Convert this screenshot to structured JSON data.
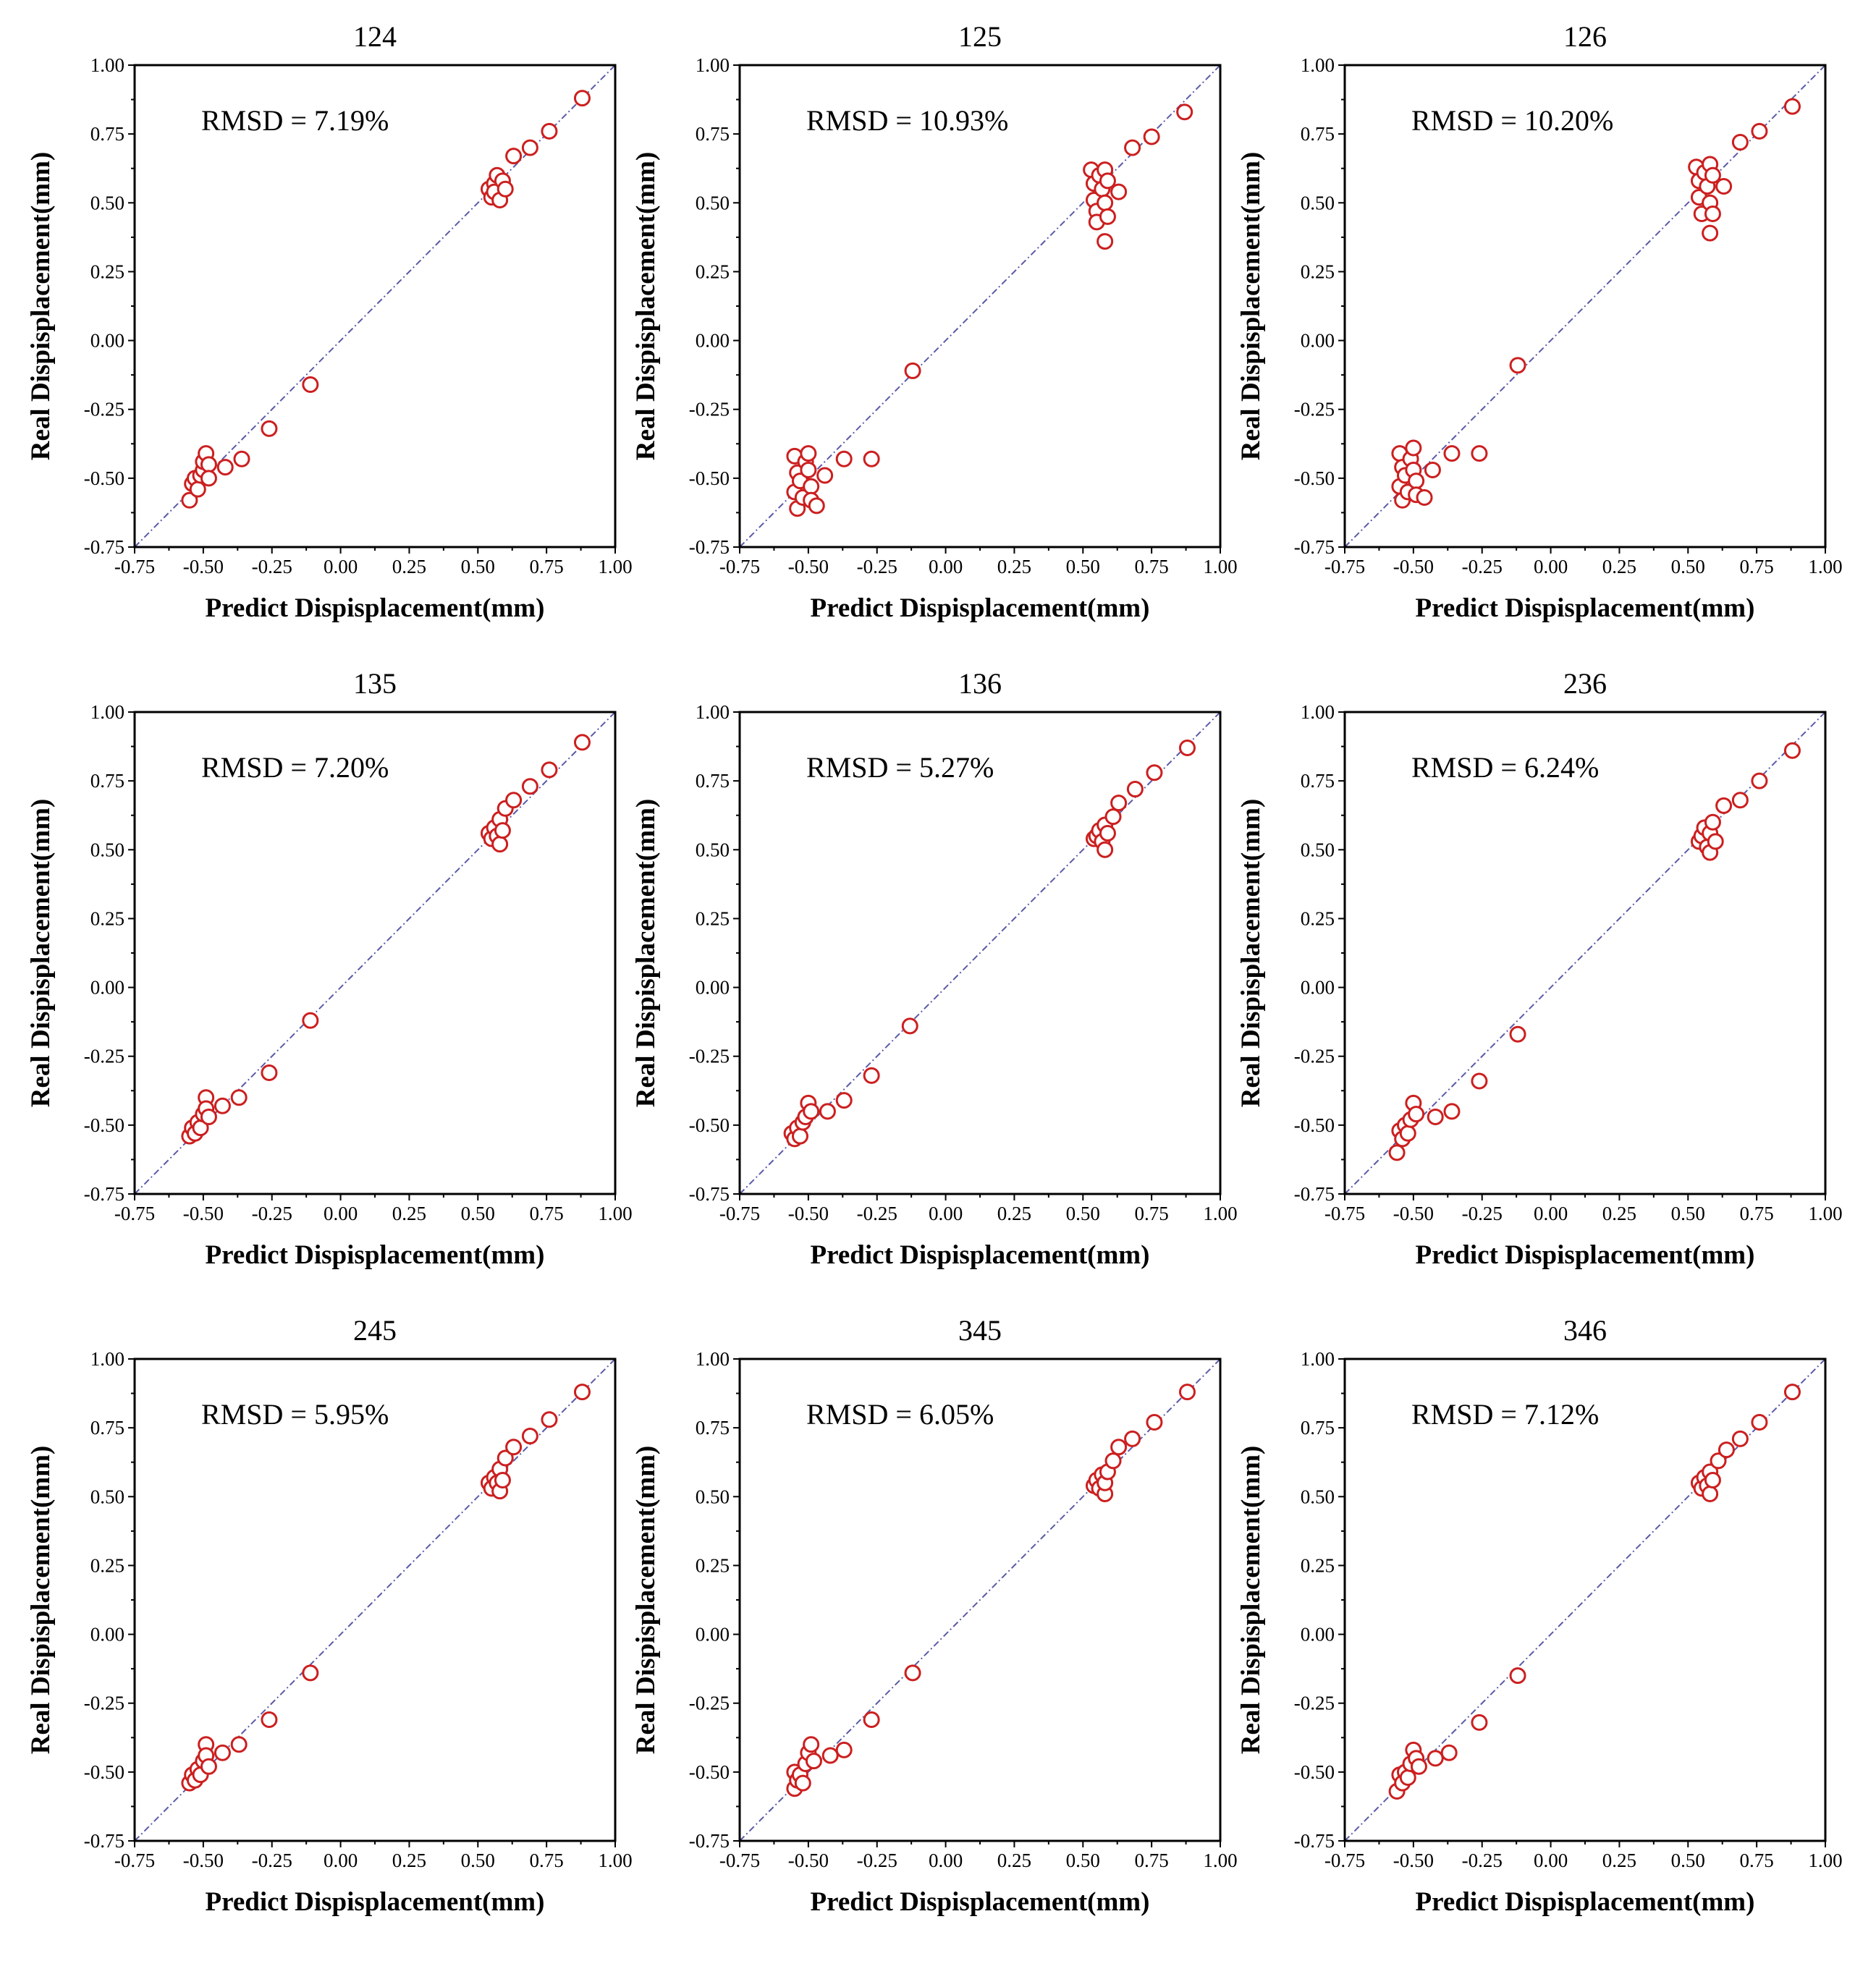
{
  "chart_data": [
    {
      "type": "scatter",
      "title": "124",
      "annotation": "RMSD = 7.19%",
      "xlabel": "Predict Dispisplacement(mm)",
      "ylabel": "Real Dispisplacement(mm)",
      "xlim": [
        -0.75,
        1.0
      ],
      "ylim": [
        -0.75,
        1.0
      ],
      "xticks": [
        "-0.75",
        "-0.50",
        "-0.25",
        "0.00",
        "0.25",
        "0.50",
        "0.75",
        "1.00"
      ],
      "yticks": [
        "-0.75",
        "-0.50",
        "-0.25",
        "0.00",
        "0.25",
        "0.50",
        "0.75",
        "1.00"
      ],
      "reference_line": "y = x",
      "marker_color": "#cc1f1f",
      "line_color": "#5a5aa8",
      "points": [
        [
          -0.55,
          -0.58
        ],
        [
          -0.54,
          -0.52
        ],
        [
          -0.53,
          -0.5
        ],
        [
          -0.52,
          -0.54
        ],
        [
          -0.51,
          -0.49
        ],
        [
          -0.5,
          -0.47
        ],
        [
          -0.5,
          -0.44
        ],
        [
          -0.49,
          -0.41
        ],
        [
          -0.48,
          -0.45
        ],
        [
          -0.48,
          -0.5
        ],
        [
          -0.42,
          -0.46
        ],
        [
          -0.36,
          -0.43
        ],
        [
          -0.26,
          -0.32
        ],
        [
          -0.11,
          -0.16
        ],
        [
          0.54,
          0.55
        ],
        [
          0.55,
          0.52
        ],
        [
          0.56,
          0.57
        ],
        [
          0.56,
          0.54
        ],
        [
          0.57,
          0.6
        ],
        [
          0.58,
          0.51
        ],
        [
          0.59,
          0.58
        ],
        [
          0.6,
          0.55
        ],
        [
          0.63,
          0.67
        ],
        [
          0.69,
          0.7
        ],
        [
          0.76,
          0.76
        ],
        [
          0.88,
          0.88
        ]
      ]
    },
    {
      "type": "scatter",
      "title": "125",
      "annotation": "RMSD = 10.93%",
      "xlabel": "Predict Dispisplacement(mm)",
      "ylabel": "Real Dispisplacement(mm)",
      "xlim": [
        -0.75,
        1.0
      ],
      "ylim": [
        -0.75,
        1.0
      ],
      "xticks": [
        "-0.75",
        "-0.50",
        "-0.25",
        "0.00",
        "0.25",
        "0.50",
        "0.75",
        "1.00"
      ],
      "yticks": [
        "-0.75",
        "-0.50",
        "-0.25",
        "0.00",
        "0.25",
        "0.50",
        "0.75",
        "1.00"
      ],
      "reference_line": "y = x",
      "marker_color": "#cc1f1f",
      "line_color": "#5a5aa8",
      "points": [
        [
          -0.55,
          -0.42
        ],
        [
          -0.55,
          -0.55
        ],
        [
          -0.54,
          -0.48
        ],
        [
          -0.54,
          -0.61
        ],
        [
          -0.53,
          -0.51
        ],
        [
          -0.52,
          -0.57
        ],
        [
          -0.51,
          -0.44
        ],
        [
          -0.5,
          -0.41
        ],
        [
          -0.5,
          -0.47
        ],
        [
          -0.49,
          -0.53
        ],
        [
          -0.49,
          -0.58
        ],
        [
          -0.47,
          -0.6
        ],
        [
          -0.44,
          -0.49
        ],
        [
          -0.37,
          -0.43
        ],
        [
          -0.27,
          -0.43
        ],
        [
          -0.12,
          -0.11
        ],
        [
          0.53,
          0.62
        ],
        [
          0.54,
          0.57
        ],
        [
          0.54,
          0.51
        ],
        [
          0.55,
          0.47
        ],
        [
          0.55,
          0.43
        ],
        [
          0.56,
          0.6
        ],
        [
          0.57,
          0.55
        ],
        [
          0.58,
          0.5
        ],
        [
          0.58,
          0.62
        ],
        [
          0.59,
          0.58
        ],
        [
          0.59,
          0.45
        ],
        [
          0.58,
          0.36
        ],
        [
          0.63,
          0.54
        ],
        [
          0.68,
          0.7
        ],
        [
          0.75,
          0.74
        ],
        [
          0.87,
          0.83
        ]
      ]
    },
    {
      "type": "scatter",
      "title": "126",
      "annotation": "RMSD = 10.20%",
      "xlabel": "Predict Dispisplacement(mm)",
      "ylabel": "Real Dispisplacement(mm)",
      "xlim": [
        -0.75,
        1.0
      ],
      "ylim": [
        -0.75,
        1.0
      ],
      "xticks": [
        "-0.75",
        "-0.50",
        "-0.25",
        "0.00",
        "0.25",
        "0.50",
        "0.75",
        "1.00"
      ],
      "yticks": [
        "-0.75",
        "-0.50",
        "-0.25",
        "0.00",
        "0.25",
        "0.50",
        "0.75",
        "1.00"
      ],
      "reference_line": "y = x",
      "marker_color": "#cc1f1f",
      "line_color": "#5a5aa8",
      "points": [
        [
          -0.55,
          -0.41
        ],
        [
          -0.55,
          -0.53
        ],
        [
          -0.54,
          -0.46
        ],
        [
          -0.54,
          -0.58
        ],
        [
          -0.53,
          -0.49
        ],
        [
          -0.52,
          -0.55
        ],
        [
          -0.51,
          -0.43
        ],
        [
          -0.5,
          -0.39
        ],
        [
          -0.5,
          -0.47
        ],
        [
          -0.49,
          -0.51
        ],
        [
          -0.49,
          -0.56
        ],
        [
          -0.46,
          -0.57
        ],
        [
          -0.43,
          -0.47
        ],
        [
          -0.36,
          -0.41
        ],
        [
          -0.26,
          -0.41
        ],
        [
          -0.12,
          -0.09
        ],
        [
          0.53,
          0.63
        ],
        [
          0.54,
          0.58
        ],
        [
          0.54,
          0.52
        ],
        [
          0.55,
          0.46
        ],
        [
          0.56,
          0.61
        ],
        [
          0.57,
          0.56
        ],
        [
          0.58,
          0.5
        ],
        [
          0.58,
          0.64
        ],
        [
          0.59,
          0.6
        ],
        [
          0.59,
          0.46
        ],
        [
          0.58,
          0.39
        ],
        [
          0.63,
          0.56
        ],
        [
          0.69,
          0.72
        ],
        [
          0.76,
          0.76
        ],
        [
          0.88,
          0.85
        ]
      ]
    },
    {
      "type": "scatter",
      "title": "135",
      "annotation": "RMSD = 7.20%",
      "xlabel": "Predict Dispisplacement(mm)",
      "ylabel": "Real Dispisplacement(mm)",
      "xlim": [
        -0.75,
        1.0
      ],
      "ylim": [
        -0.75,
        1.0
      ],
      "xticks": [
        "-0.75",
        "-0.50",
        "-0.25",
        "0.00",
        "0.25",
        "0.50",
        "0.75",
        "1.00"
      ],
      "yticks": [
        "-0.75",
        "-0.50",
        "-0.25",
        "0.00",
        "0.25",
        "0.50",
        "0.75",
        "1.00"
      ],
      "reference_line": "y = x",
      "marker_color": "#cc1f1f",
      "line_color": "#5a5aa8",
      "points": [
        [
          -0.55,
          -0.54
        ],
        [
          -0.54,
          -0.51
        ],
        [
          -0.53,
          -0.53
        ],
        [
          -0.52,
          -0.49
        ],
        [
          -0.51,
          -0.51
        ],
        [
          -0.5,
          -0.46
        ],
        [
          -0.49,
          -0.4
        ],
        [
          -0.49,
          -0.44
        ],
        [
          -0.48,
          -0.47
        ],
        [
          -0.43,
          -0.43
        ],
        [
          -0.37,
          -0.4
        ],
        [
          -0.26,
          -0.31
        ],
        [
          -0.11,
          -0.12
        ],
        [
          0.54,
          0.56
        ],
        [
          0.55,
          0.54
        ],
        [
          0.56,
          0.58
        ],
        [
          0.57,
          0.55
        ],
        [
          0.58,
          0.61
        ],
        [
          0.58,
          0.52
        ],
        [
          0.59,
          0.57
        ],
        [
          0.6,
          0.65
        ],
        [
          0.63,
          0.68
        ],
        [
          0.69,
          0.73
        ],
        [
          0.76,
          0.79
        ],
        [
          0.88,
          0.89
        ]
      ]
    },
    {
      "type": "scatter",
      "title": "136",
      "annotation": "RMSD = 5.27%",
      "xlabel": "Predict Dispisplacement(mm)",
      "ylabel": "Real Dispisplacement(mm)",
      "xlim": [
        -0.75,
        1.0
      ],
      "ylim": [
        -0.75,
        1.0
      ],
      "xticks": [
        "-0.75",
        "-0.50",
        "-0.25",
        "0.00",
        "0.25",
        "0.50",
        "0.75",
        "1.00"
      ],
      "yticks": [
        "-0.75",
        "-0.50",
        "-0.25",
        "0.00",
        "0.25",
        "0.50",
        "0.75",
        "1.00"
      ],
      "reference_line": "y = x",
      "marker_color": "#cc1f1f",
      "line_color": "#5a5aa8",
      "points": [
        [
          -0.56,
          -0.53
        ],
        [
          -0.55,
          -0.55
        ],
        [
          -0.54,
          -0.51
        ],
        [
          -0.53,
          -0.54
        ],
        [
          -0.52,
          -0.49
        ],
        [
          -0.51,
          -0.47
        ],
        [
          -0.5,
          -0.42
        ],
        [
          -0.49,
          -0.45
        ],
        [
          -0.43,
          -0.45
        ],
        [
          -0.37,
          -0.41
        ],
        [
          -0.27,
          -0.32
        ],
        [
          -0.13,
          -0.14
        ],
        [
          0.54,
          0.54
        ],
        [
          0.55,
          0.55
        ],
        [
          0.56,
          0.57
        ],
        [
          0.57,
          0.53
        ],
        [
          0.58,
          0.59
        ],
        [
          0.58,
          0.5
        ],
        [
          0.59,
          0.56
        ],
        [
          0.61,
          0.62
        ],
        [
          0.63,
          0.67
        ],
        [
          0.69,
          0.72
        ],
        [
          0.76,
          0.78
        ],
        [
          0.88,
          0.87
        ]
      ]
    },
    {
      "type": "scatter",
      "title": "236",
      "annotation": "RMSD = 6.24%",
      "xlabel": "Predict Dispisplacement(mm)",
      "ylabel": "Real Dispisplacement(mm)",
      "xlim": [
        -0.75,
        1.0
      ],
      "ylim": [
        -0.75,
        1.0
      ],
      "xticks": [
        "-0.75",
        "-0.50",
        "-0.25",
        "0.00",
        "0.25",
        "0.50",
        "0.75",
        "1.00"
      ],
      "yticks": [
        "-0.75",
        "-0.50",
        "-0.25",
        "0.00",
        "0.25",
        "0.50",
        "0.75",
        "1.00"
      ],
      "reference_line": "y = x",
      "marker_color": "#cc1f1f",
      "line_color": "#5a5aa8",
      "points": [
        [
          -0.56,
          -0.6
        ],
        [
          -0.55,
          -0.52
        ],
        [
          -0.54,
          -0.55
        ],
        [
          -0.53,
          -0.5
        ],
        [
          -0.52,
          -0.53
        ],
        [
          -0.51,
          -0.48
        ],
        [
          -0.5,
          -0.42
        ],
        [
          -0.49,
          -0.46
        ],
        [
          -0.42,
          -0.47
        ],
        [
          -0.36,
          -0.45
        ],
        [
          -0.26,
          -0.34
        ],
        [
          -0.12,
          -0.17
        ],
        [
          0.54,
          0.53
        ],
        [
          0.55,
          0.55
        ],
        [
          0.56,
          0.58
        ],
        [
          0.57,
          0.51
        ],
        [
          0.58,
          0.56
        ],
        [
          0.58,
          0.49
        ],
        [
          0.59,
          0.6
        ],
        [
          0.6,
          0.53
        ],
        [
          0.63,
          0.66
        ],
        [
          0.69,
          0.68
        ],
        [
          0.76,
          0.75
        ],
        [
          0.88,
          0.86
        ]
      ]
    },
    {
      "type": "scatter",
      "title": "245",
      "annotation": "RMSD = 5.95%",
      "xlabel": "Predict Dispisplacement(mm)",
      "ylabel": "Real Dispisplacement(mm)",
      "xlim": [
        -0.75,
        1.0
      ],
      "ylim": [
        -0.75,
        1.0
      ],
      "xticks": [
        "-0.75",
        "-0.50",
        "-0.25",
        "0.00",
        "0.25",
        "0.50",
        "0.75",
        "1.00"
      ],
      "yticks": [
        "-0.75",
        "-0.50",
        "-0.25",
        "0.00",
        "0.25",
        "0.50",
        "0.75",
        "1.00"
      ],
      "reference_line": "y = x",
      "marker_color": "#cc1f1f",
      "line_color": "#5a5aa8",
      "points": [
        [
          -0.55,
          -0.54
        ],
        [
          -0.54,
          -0.51
        ],
        [
          -0.53,
          -0.53
        ],
        [
          -0.52,
          -0.49
        ],
        [
          -0.51,
          -0.51
        ],
        [
          -0.5,
          -0.46
        ],
        [
          -0.49,
          -0.4
        ],
        [
          -0.49,
          -0.44
        ],
        [
          -0.48,
          -0.48
        ],
        [
          -0.43,
          -0.43
        ],
        [
          -0.37,
          -0.4
        ],
        [
          -0.26,
          -0.31
        ],
        [
          -0.11,
          -0.14
        ],
        [
          0.54,
          0.55
        ],
        [
          0.55,
          0.53
        ],
        [
          0.56,
          0.57
        ],
        [
          0.57,
          0.55
        ],
        [
          0.58,
          0.6
        ],
        [
          0.58,
          0.52
        ],
        [
          0.59,
          0.56
        ],
        [
          0.6,
          0.64
        ],
        [
          0.63,
          0.68
        ],
        [
          0.69,
          0.72
        ],
        [
          0.76,
          0.78
        ],
        [
          0.88,
          0.88
        ]
      ]
    },
    {
      "type": "scatter",
      "title": "345",
      "annotation": "RMSD = 6.05%",
      "xlabel": "Predict Dispisplacement(mm)",
      "ylabel": "Real Dispisplacement(mm)",
      "xlim": [
        -0.75,
        1.0
      ],
      "ylim": [
        -0.75,
        1.0
      ],
      "xticks": [
        "-0.75",
        "-0.50",
        "-0.25",
        "0.00",
        "0.25",
        "0.50",
        "0.75",
        "1.00"
      ],
      "yticks": [
        "-0.75",
        "-0.50",
        "-0.25",
        "0.00",
        "0.25",
        "0.50",
        "0.75",
        "1.00"
      ],
      "reference_line": "y = x",
      "marker_color": "#cc1f1f",
      "line_color": "#5a5aa8",
      "points": [
        [
          -0.55,
          -0.56
        ],
        [
          -0.55,
          -0.5
        ],
        [
          -0.54,
          -0.53
        ],
        [
          -0.53,
          -0.51
        ],
        [
          -0.52,
          -0.54
        ],
        [
          -0.51,
          -0.47
        ],
        [
          -0.5,
          -0.43
        ],
        [
          -0.49,
          -0.4
        ],
        [
          -0.48,
          -0.46
        ],
        [
          -0.42,
          -0.44
        ],
        [
          -0.37,
          -0.42
        ],
        [
          -0.27,
          -0.31
        ],
        [
          -0.12,
          -0.14
        ],
        [
          0.54,
          0.54
        ],
        [
          0.55,
          0.56
        ],
        [
          0.56,
          0.53
        ],
        [
          0.57,
          0.58
        ],
        [
          0.58,
          0.51
        ],
        [
          0.58,
          0.55
        ],
        [
          0.59,
          0.59
        ],
        [
          0.61,
          0.63
        ],
        [
          0.63,
          0.68
        ],
        [
          0.68,
          0.71
        ],
        [
          0.76,
          0.77
        ],
        [
          0.88,
          0.88
        ]
      ]
    },
    {
      "type": "scatter",
      "title": "346",
      "annotation": "RMSD = 7.12%",
      "xlabel": "Predict Dispisplacement(mm)",
      "ylabel": "Real Dispisplacement(mm)",
      "xlim": [
        -0.75,
        1.0
      ],
      "ylim": [
        -0.75,
        1.0
      ],
      "xticks": [
        "-0.75",
        "-0.50",
        "-0.25",
        "0.00",
        "0.25",
        "0.50",
        "0.75",
        "1.00"
      ],
      "yticks": [
        "-0.75",
        "-0.50",
        "-0.25",
        "0.00",
        "0.25",
        "0.50",
        "0.75",
        "1.00"
      ],
      "reference_line": "y = x",
      "marker_color": "#cc1f1f",
      "line_color": "#5a5aa8",
      "points": [
        [
          -0.56,
          -0.57
        ],
        [
          -0.55,
          -0.51
        ],
        [
          -0.54,
          -0.54
        ],
        [
          -0.53,
          -0.5
        ],
        [
          -0.52,
          -0.52
        ],
        [
          -0.51,
          -0.47
        ],
        [
          -0.5,
          -0.42
        ],
        [
          -0.49,
          -0.45
        ],
        [
          -0.48,
          -0.48
        ],
        [
          -0.42,
          -0.45
        ],
        [
          -0.37,
          -0.43
        ],
        [
          -0.26,
          -0.32
        ],
        [
          -0.12,
          -0.15
        ],
        [
          0.54,
          0.55
        ],
        [
          0.55,
          0.53
        ],
        [
          0.56,
          0.57
        ],
        [
          0.57,
          0.54
        ],
        [
          0.58,
          0.59
        ],
        [
          0.58,
          0.51
        ],
        [
          0.59,
          0.56
        ],
        [
          0.61,
          0.63
        ],
        [
          0.64,
          0.67
        ],
        [
          0.69,
          0.71
        ],
        [
          0.76,
          0.77
        ],
        [
          0.88,
          0.88
        ]
      ]
    }
  ]
}
